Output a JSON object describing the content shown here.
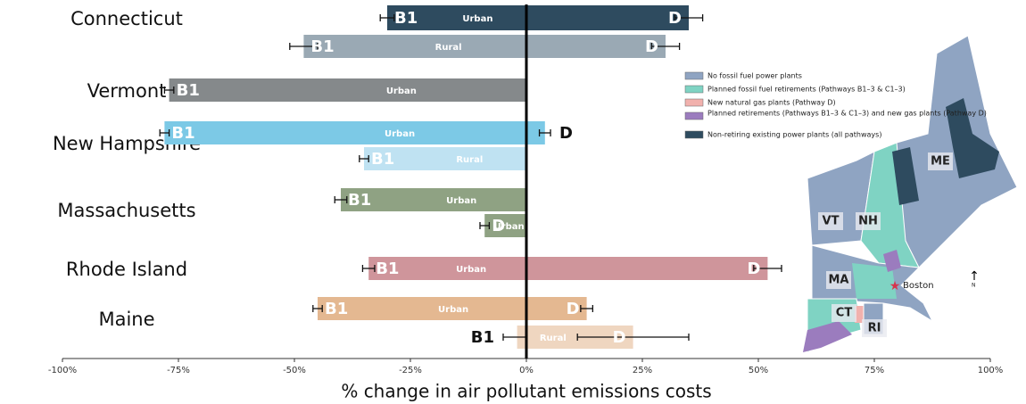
{
  "chart_data": {
    "type": "bar",
    "xlabel": "% change in air pollutant emissions costs",
    "xlim": [
      -100,
      100
    ],
    "xticks": [
      {
        "value": -100,
        "label": "-100%"
      },
      {
        "value": -75,
        "label": "-75%"
      },
      {
        "value": -50,
        "label": "-50%"
      },
      {
        "value": -25,
        "label": "-25%"
      },
      {
        "value": 0,
        "label": "0%"
      },
      {
        "value": 25,
        "label": "25%"
      },
      {
        "value": 50,
        "label": "50%"
      },
      {
        "value": 75,
        "label": "75%"
      },
      {
        "value": 100,
        "label": "100%"
      }
    ],
    "categories": [
      "Connecticut",
      null,
      "Vermont",
      "New Hampshire",
      null,
      "Massachusetts",
      null,
      "Rhode Island",
      "Maine",
      null
    ],
    "settings": [
      "Urban",
      "Rural",
      "Urban",
      "Urban",
      "Rural",
      "Urban",
      "Urban",
      "Urban",
      "Urban",
      "Rural"
    ],
    "colors": [
      "#2e4b5f",
      "#9aa9b4",
      "#85898b",
      "#7cc9e6",
      "#bfe2f2",
      "#8fa283",
      "#8fa283",
      "#cf959b",
      "#e4b891",
      "#efd6c0"
    ],
    "series": [
      {
        "name": "B1",
        "values": [
          -30,
          -48,
          -77,
          -78,
          -35,
          -40,
          null,
          -34,
          -45,
          -2
        ],
        "errors": [
          1.5,
          3,
          1,
          1,
          1,
          1.3,
          null,
          1.3,
          1,
          3
        ]
      },
      {
        "name": "D",
        "values": [
          35,
          30,
          null,
          4,
          null,
          null,
          -9,
          52,
          13,
          23
        ],
        "errors": [
          3,
          3,
          null,
          1.2,
          null,
          null,
          1,
          3,
          1.3,
          12
        ]
      }
    ]
  },
  "map": {
    "legend": [
      {
        "label": "No fossil fuel power plants",
        "color": "#8fa4c2"
      },
      {
        "label": "Planned fossil fuel retirements (Pathways B1–3 & C1–3)",
        "color": "#7fd3c3"
      },
      {
        "label": "New natural gas plants (Pathway D)",
        "color": "#f1b1ad"
      },
      {
        "label": "Planned retirements (Pathways B1–3 & C1–3) and new gas plants (Pathway D)",
        "color": "#9b7cbe"
      },
      {
        "label": "Non-retiring existing power plants (all pathways)",
        "color": "#2e4b5f"
      }
    ],
    "state_labels": [
      "ME",
      "VT",
      "NH",
      "MA",
      "CT",
      "RI"
    ],
    "city": "Boston",
    "north": "N"
  }
}
